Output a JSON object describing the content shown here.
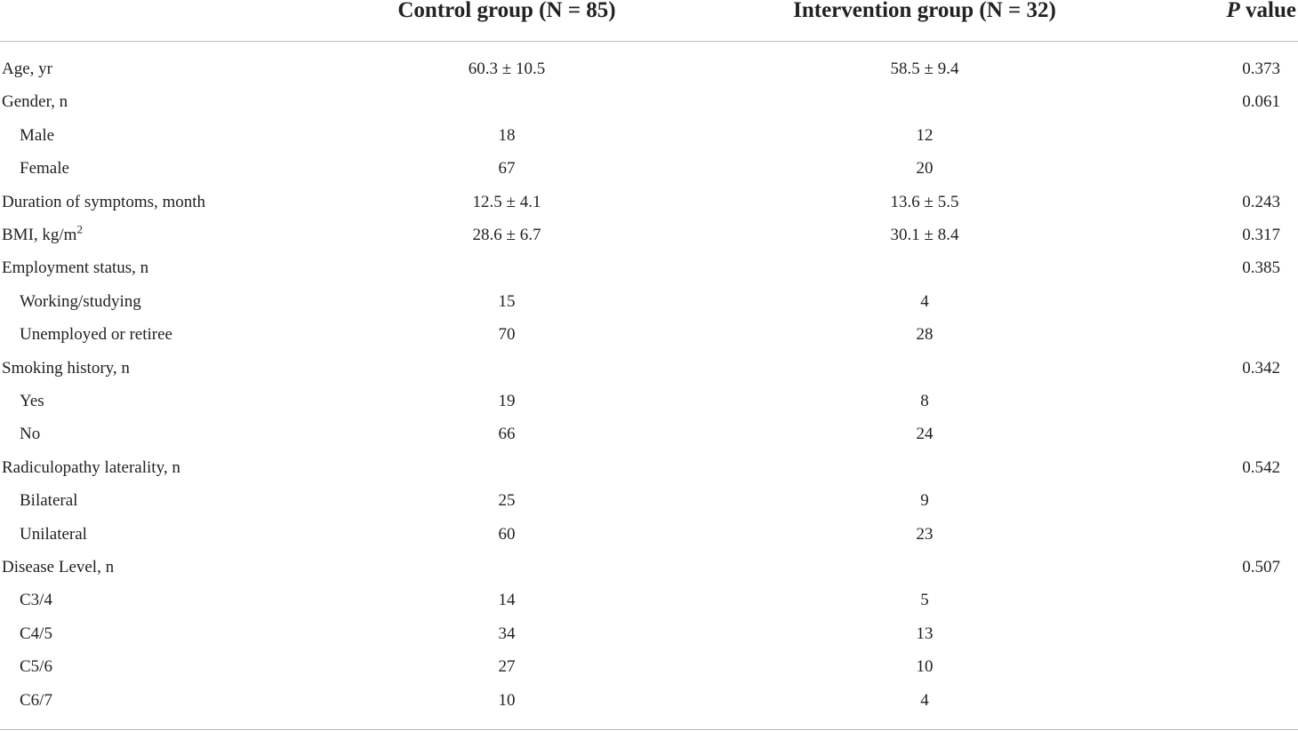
{
  "table": {
    "header": {
      "control": "Control group (N = 85)",
      "intervention": "Intervention group (N = 32)",
      "p_symbol": "P",
      "p_label": "value"
    },
    "rows": [
      {
        "label": "Age, yr",
        "control": "60.3 ± 10.5",
        "intervention": "58.5 ± 9.4",
        "p": "0.373"
      },
      {
        "label": "Gender, n",
        "p": "0.061",
        "subrows": [
          {
            "label": "Male",
            "control": "18",
            "intervention": "12"
          },
          {
            "label": "Female",
            "control": "67",
            "intervention": "20"
          }
        ]
      },
      {
        "label": "Duration of symptoms, month",
        "control": "12.5 ± 4.1",
        "intervention": "13.6 ± 5.5",
        "p": "0.243"
      },
      {
        "label": "BMI, kg/m",
        "superscript": "2",
        "control": "28.6 ± 6.7",
        "intervention": "30.1 ± 8.4",
        "p": "0.317"
      },
      {
        "label": "Employment status, n",
        "p": "0.385",
        "subrows": [
          {
            "label": "Working/studying",
            "control": "15",
            "intervention": "4"
          },
          {
            "label": "Unemployed or retiree",
            "control": "70",
            "intervention": "28"
          }
        ]
      },
      {
        "label": "Smoking history, n",
        "p": "0.342",
        "subrows": [
          {
            "label": "Yes",
            "control": "19",
            "intervention": "8"
          },
          {
            "label": "No",
            "control": "66",
            "intervention": "24"
          }
        ]
      },
      {
        "label": "Radiculopathy laterality, n",
        "p": "0.542",
        "subrows": [
          {
            "label": "Bilateral",
            "control": "25",
            "intervention": "9"
          },
          {
            "label": "Unilateral",
            "control": "60",
            "intervention": "23"
          }
        ]
      },
      {
        "label": "Disease Level, n",
        "p": "0.507",
        "subrows": [
          {
            "label": "C3/4",
            "control": "14",
            "intervention": "5"
          },
          {
            "label": "C4/5",
            "control": "34",
            "intervention": "13"
          },
          {
            "label": "C5/6",
            "control": "27",
            "intervention": "10"
          },
          {
            "label": "C6/7",
            "control": "10",
            "intervention": "4"
          }
        ]
      }
    ]
  }
}
